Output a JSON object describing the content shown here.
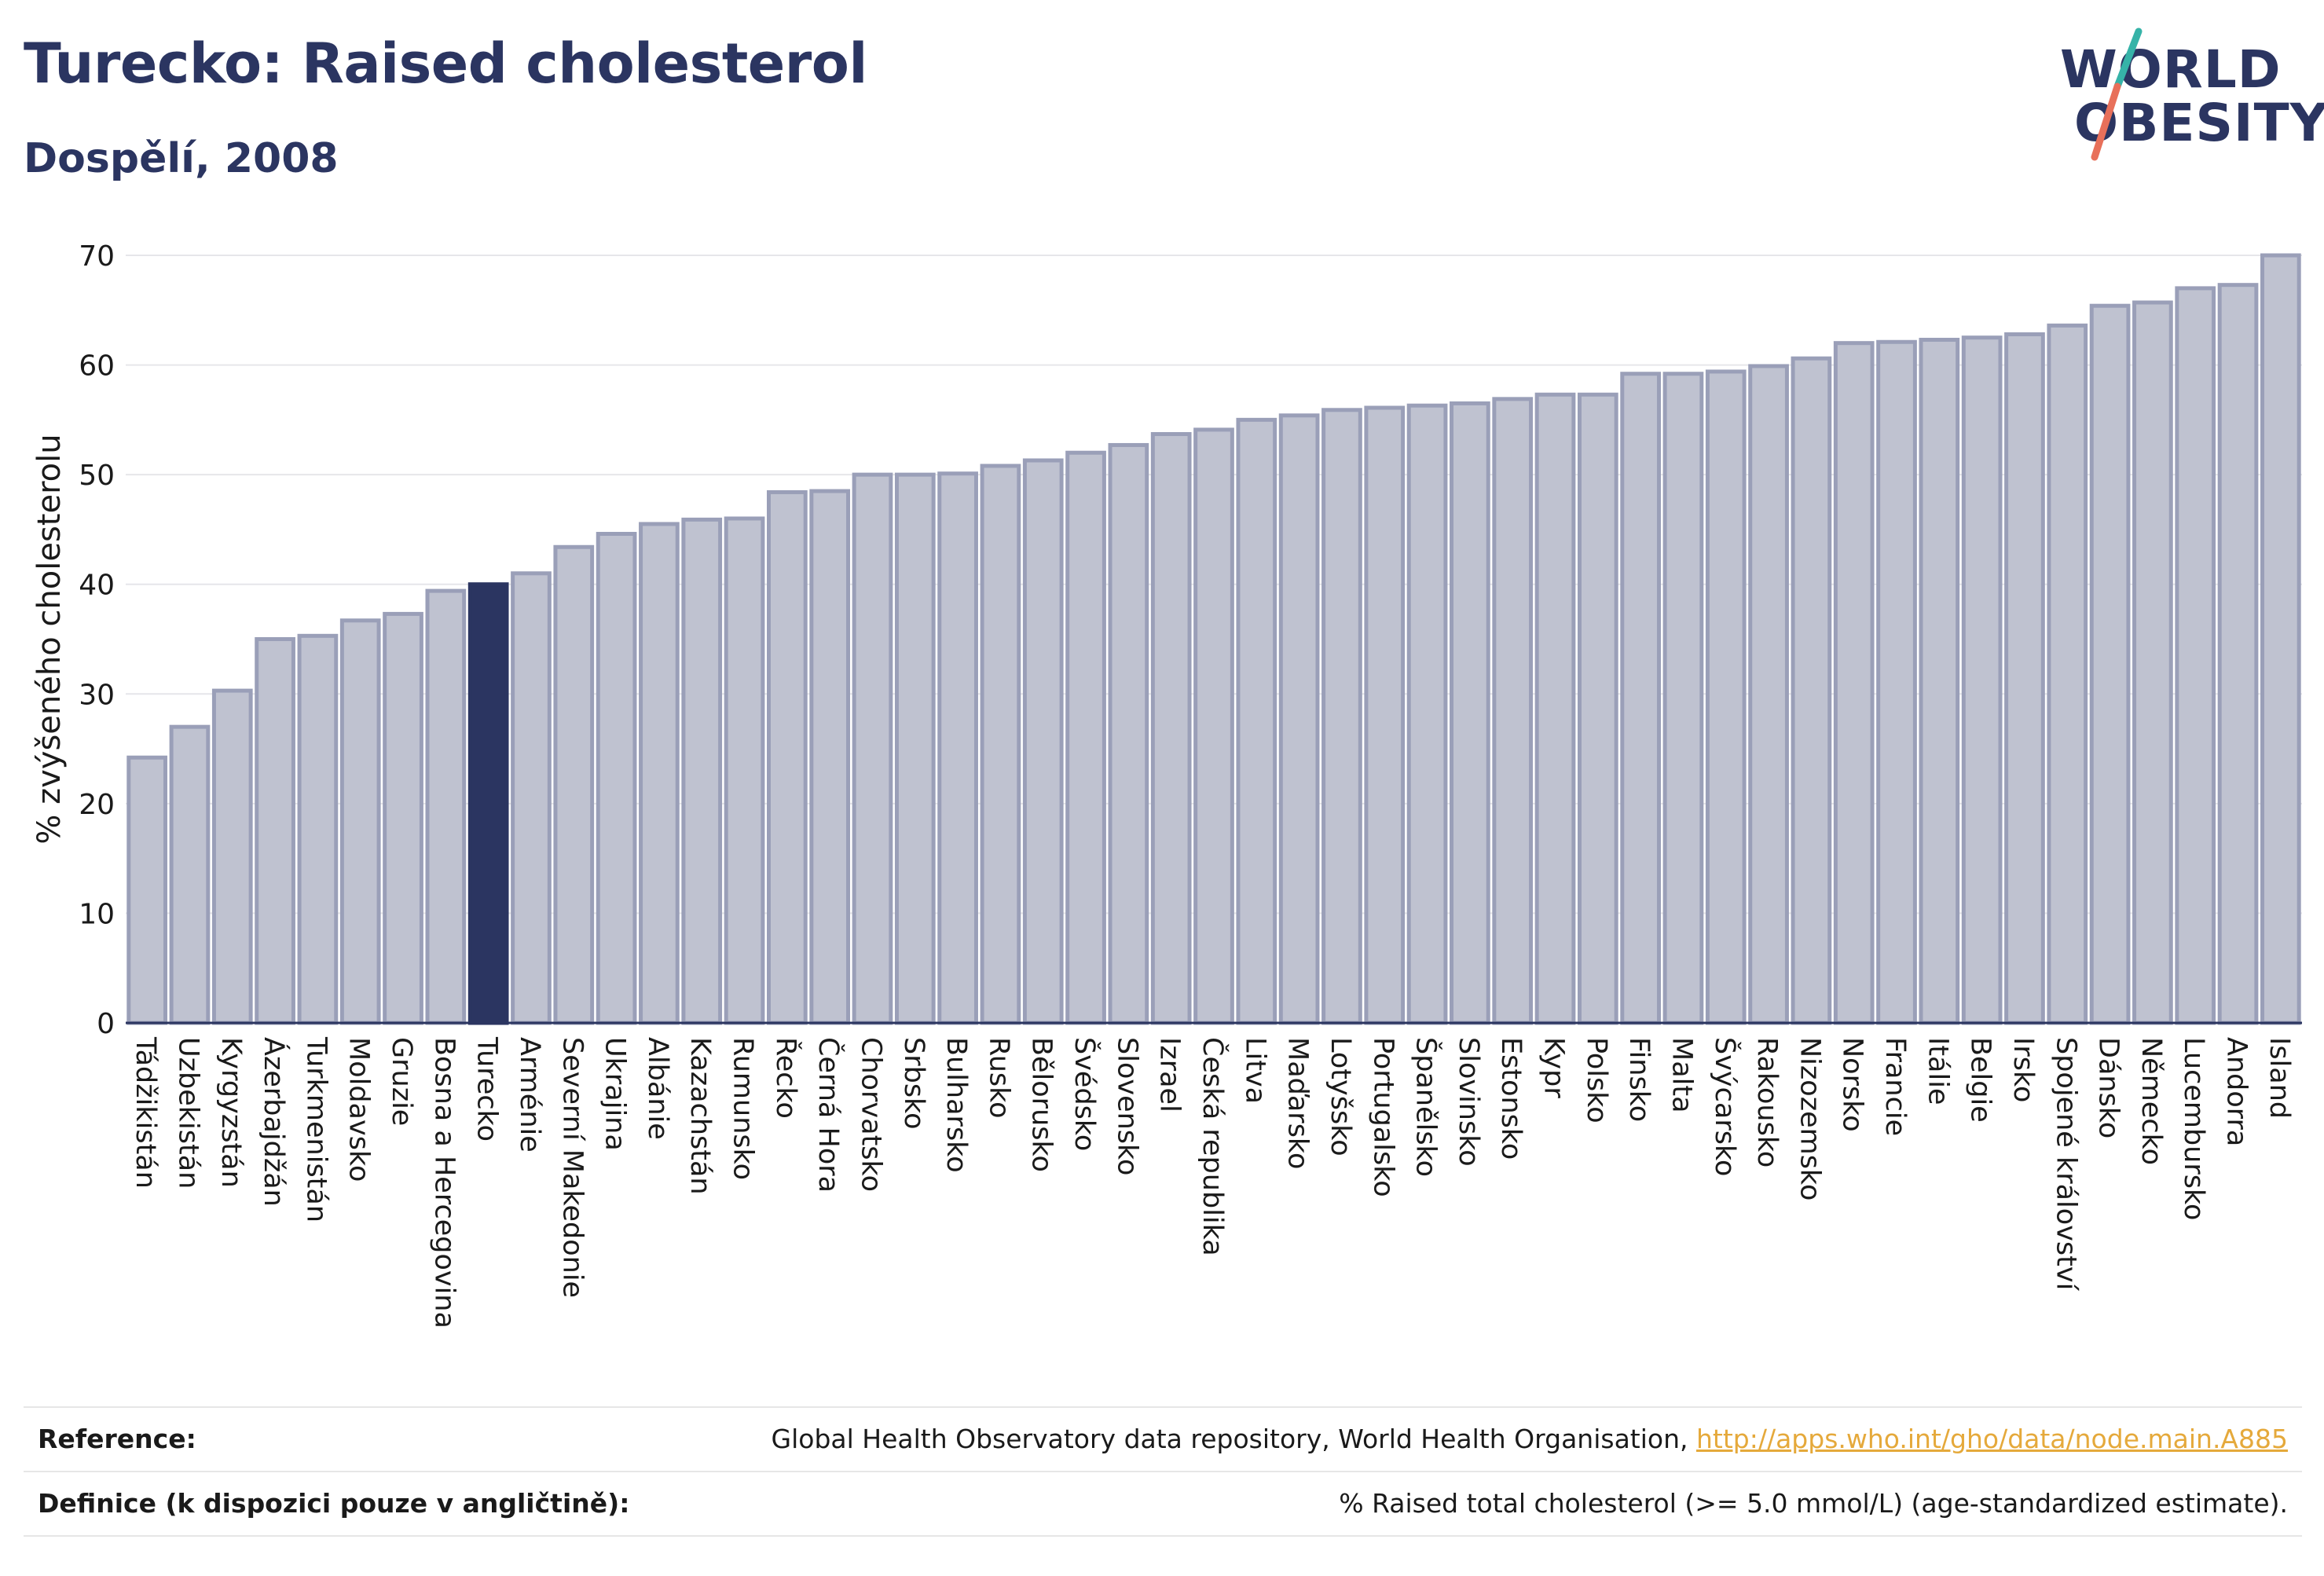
{
  "header": {
    "title": "Turecko: Raised cholesterol",
    "subtitle": "Dospělí, 2008"
  },
  "logo": {
    "line1": "WORLD",
    "line2": "OBESITY",
    "colors": {
      "text": "#2b3561",
      "slash_top": "#36b3a8",
      "slash_bottom": "#e8705a"
    }
  },
  "chart_data": {
    "type": "bar",
    "title": "Turecko: Raised cholesterol",
    "subtitle": "Dospělí, 2008",
    "ylabel": "% zvýšeného cholesterolu",
    "xlabel": "",
    "ylim": [
      0,
      70
    ],
    "yticks": [
      0,
      10,
      20,
      30,
      40,
      50,
      60,
      70
    ],
    "grid": true,
    "highlight": "Turecko",
    "colors": {
      "bar": "#bfc2d0",
      "bar_edge": "#9a9fb8",
      "highlight": "#2b3561",
      "grid": "#e6e6ea",
      "axis": "#2b3561"
    },
    "categories": [
      "Tádžikistán",
      "Uzbekistán",
      "Kyrgyzstán",
      "Ázerbajdžán",
      "Turkmenistán",
      "Moldavsko",
      "Gruzie",
      "Bosna a Hercegovina",
      "Turecko",
      "Arménie",
      "Severní Makedonie",
      "Ukrajina",
      "Albánie",
      "Kazachstán",
      "Rumunsko",
      "Řecko",
      "Černá Hora",
      "Chorvatsko",
      "Srbsko",
      "Bulharsko",
      "Rusko",
      "Bělorusko",
      "Švédsko",
      "Slovensko",
      "Izrael",
      "Česká republika",
      "Litva",
      "Maďarsko",
      "Lotyšsko",
      "Portugalsko",
      "Španělsko",
      "Slovinsko",
      "Estonsko",
      "Kypr",
      "Polsko",
      "Finsko",
      "Malta",
      "Švýcarsko",
      "Rakousko",
      "Nizozemsko",
      "Norsko",
      "Francie",
      "Itálie",
      "Belgie",
      "Irsko",
      "Spojené království",
      "Dánsko",
      "Německo",
      "Lucembursko",
      "Andorra",
      "Island"
    ],
    "values": [
      24.2,
      27.0,
      30.3,
      35.0,
      35.3,
      36.7,
      37.3,
      39.4,
      40.0,
      41.0,
      43.4,
      44.6,
      45.5,
      45.9,
      46.0,
      48.4,
      48.5,
      50.0,
      50.0,
      50.1,
      50.8,
      51.3,
      52.0,
      52.7,
      53.7,
      54.1,
      55.0,
      55.4,
      55.9,
      56.1,
      56.3,
      56.5,
      56.9,
      57.3,
      57.3,
      59.2,
      59.2,
      59.4,
      59.9,
      60.6,
      62.0,
      62.1,
      62.3,
      62.5,
      62.8,
      63.6,
      65.4,
      65.7,
      67.0,
      67.3,
      70.0
    ]
  },
  "footer": {
    "reference_label": "Reference:",
    "reference_text": "Global Health Observatory data repository, World Health Organisation, ",
    "reference_link": "http://apps.who.int/gho/data/node.main.A885",
    "definition_label": "Definice (k dispozici pouze v angličtině):",
    "definition_text": "% Raised total cholesterol (>= 5.0 mmol/L) (age-standardized estimate)."
  }
}
